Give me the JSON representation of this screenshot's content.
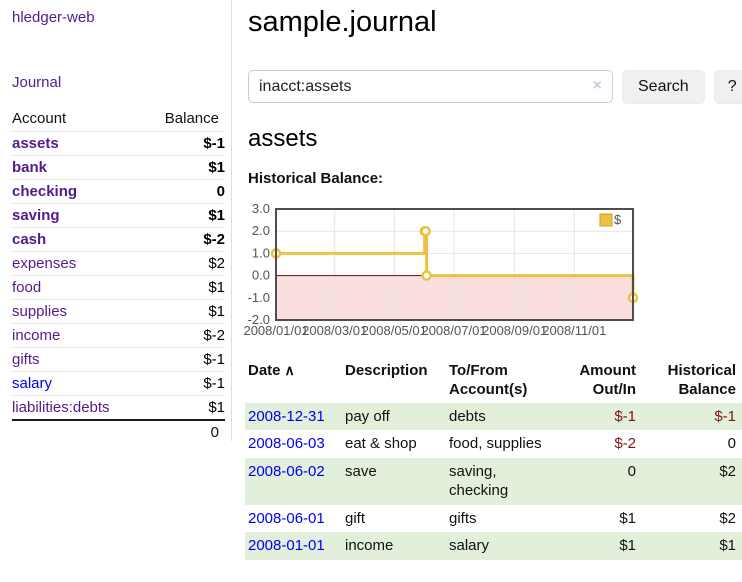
{
  "colors": {
    "link_purple": "#551a8b",
    "link_blue": "#0000ee",
    "negative_strong": "#7f1414",
    "negative_soft": "#aa6666",
    "row_highlight": "#e2efdb",
    "button_bg": "#f0f0f0",
    "border_gray": "#dddddd"
  },
  "app": {
    "brand": "hledger-web"
  },
  "sidebar": {
    "nav_journal": "Journal",
    "accounts_table": {
      "header_account": "Account",
      "header_balance": "Balance",
      "accounts": [
        {
          "name": "assets",
          "balance": "$-1",
          "depth": 1,
          "in_filter": true,
          "negative": true,
          "muted": false
        },
        {
          "name": "bank",
          "balance": "$1",
          "depth": 2,
          "in_filter": true,
          "negative": false,
          "muted": false
        },
        {
          "name": "checking",
          "balance": "0",
          "depth": 3,
          "in_filter": true,
          "negative": false,
          "muted": false
        },
        {
          "name": "saving",
          "balance": "$1",
          "depth": 3,
          "in_filter": true,
          "negative": false,
          "muted": false
        },
        {
          "name": "cash",
          "balance": "$-2",
          "depth": 2,
          "in_filter": true,
          "negative": true,
          "muted": false
        },
        {
          "name": "expenses",
          "balance": "$2",
          "depth": 1,
          "in_filter": false,
          "negative": false,
          "muted": false
        },
        {
          "name": "food",
          "balance": "$1",
          "depth": 2,
          "in_filter": false,
          "negative": false,
          "muted": false
        },
        {
          "name": "supplies",
          "balance": "$1",
          "depth": 2,
          "in_filter": false,
          "negative": false,
          "muted": false
        },
        {
          "name": "income",
          "balance": "$-2",
          "depth": 1,
          "in_filter": false,
          "negative": true,
          "muted": true
        },
        {
          "name": "gifts",
          "balance": "$-1",
          "depth": 2,
          "in_filter": false,
          "negative": true,
          "muted": true
        },
        {
          "name": "salary",
          "balance": "$-1",
          "depth": 2,
          "in_filter": false,
          "negative": true,
          "muted": true,
          "link_style": "blue"
        },
        {
          "name": "liabilities:debts",
          "balance": "$1",
          "depth": 1,
          "in_filter": false,
          "negative": false,
          "muted": false
        }
      ],
      "total": "0"
    }
  },
  "header": {
    "title": "sample.journal"
  },
  "search": {
    "value": "inacct:assets",
    "clear_icon": "×",
    "button_label": "Search",
    "help_label": "?"
  },
  "main": {
    "account_heading": "assets",
    "chart_title": "Historical Balance:"
  },
  "chart_data": {
    "type": "line",
    "title": "Historical Balance:",
    "step": true,
    "series": [
      {
        "name": "$",
        "color": "#edc240",
        "points": [
          [
            "2008-01-01",
            1
          ],
          [
            "2008-06-01",
            2
          ],
          [
            "2008-06-02",
            2
          ],
          [
            "2008-06-03",
            0
          ],
          [
            "2008-12-31",
            -1
          ]
        ]
      }
    ],
    "xlim": [
      "2008-01-01",
      "2008-12-31"
    ],
    "ylim": [
      -2,
      3
    ],
    "x_ticks": [
      "2008/01/01",
      "2008/03/01",
      "2008/05/01",
      "2008/07/01",
      "2008/09/01",
      "2008/11/01"
    ],
    "y_ticks": [
      3,
      2,
      1,
      0,
      -1,
      -2
    ],
    "legend": {
      "label": "$",
      "position": "top-right"
    },
    "grid": true,
    "grid_color": "#e6e6e6",
    "border_color": "#4d4d4d",
    "label_color": "#545454",
    "zero_line_color": "#800000",
    "negative_fill": "#fbdede",
    "marker_fill": "#ffffff",
    "legend_swatch_border": "#c7a229"
  },
  "register": {
    "headers": {
      "date": "Date",
      "sort_icon": "∧",
      "description": "Description",
      "accounts": "To/From Account(s)",
      "amount": "Amount Out/In",
      "balance": "Historical Balance"
    },
    "rows": [
      {
        "date": "2008-12-31",
        "description": "pay off",
        "accounts": "debts",
        "amount": "$-1",
        "balance": "$-1",
        "amount_negative": true,
        "balance_negative": true
      },
      {
        "date": "2008-06-03",
        "description": "eat & shop",
        "accounts": "food, supplies",
        "amount": "$-2",
        "balance": "0",
        "amount_negative": true,
        "balance_negative": false
      },
      {
        "date": "2008-06-02",
        "description": "save",
        "accounts": "saving, checking",
        "amount": "0",
        "balance": "$2",
        "amount_negative": false,
        "balance_negative": false
      },
      {
        "date": "2008-06-01",
        "description": "gift",
        "accounts": "gifts",
        "amount": "$1",
        "balance": "$2",
        "amount_negative": false,
        "balance_negative": false
      },
      {
        "date": "2008-01-01",
        "description": "income",
        "accounts": "salary",
        "amount": "$1",
        "balance": "$1",
        "amount_negative": false,
        "balance_negative": false
      }
    ]
  }
}
